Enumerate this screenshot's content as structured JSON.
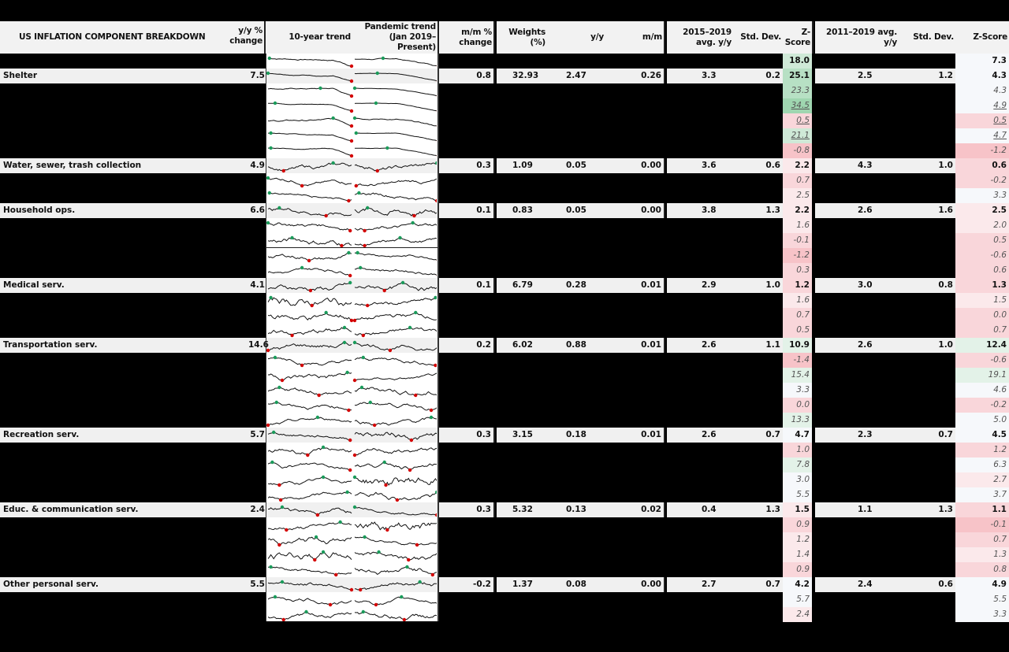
{
  "title": "US INFLATION COMPONENT BREAKDOWN",
  "headers": {
    "yy_change": "y/y % change",
    "yy_change_l1": "y/y %",
    "yy_change_l2": "change",
    "trend10": "10-year trend",
    "pandemic_l1": "Pandemic trend",
    "pandemic_l2": "(Jan 2019–Present)",
    "mm_l1": "m/m %",
    "mm_l2": "change",
    "weights_l1": "Weights",
    "weights_l2": "(%)",
    "contrib_yy": "y/y",
    "contrib_mm": "m/m",
    "avg2015_l1": "2015–2019",
    "avg2015_l2": "avg. y/y",
    "std1": "Std. Dev.",
    "z1": "Z-Score",
    "avg2011_l1": "2011–2019 avg.",
    "avg2011_l2": "y/y",
    "std2": "Std. Dev.",
    "z2": "Z-Score"
  },
  "colors": {
    "green_strong": "#9fd6b0",
    "green_mid": "#b7e0c4",
    "green_light": "#cfe9d7",
    "green_faint": "#e3f2e8",
    "neutral": "#f6f8fb",
    "pink_faint": "#fbe9eb",
    "pink_light": "#f9d6da",
    "pink_mid": "#f7c3c8",
    "spark_low": "#d40000",
    "spark_high": "#1a9b5a"
  },
  "rows": [
    {
      "type": "sub",
      "z1": "18.0",
      "z1c": "green_light",
      "z2": "7.3",
      "z2c": "neutral",
      "z_bold": true
    },
    {
      "type": "main",
      "label": "Shelter",
      "yy": "7.5",
      "mm": "0.8",
      "weight": "32.93",
      "cyy": "2.47",
      "cmm": "0.26",
      "avg1": "3.3",
      "std1": "0.2",
      "z1": "25.1",
      "z1c": "green_mid",
      "avg2": "2.5",
      "std2": "1.2",
      "z2": "4.3",
      "z2c": "neutral"
    },
    {
      "type": "sub",
      "z1": "23.3",
      "z1c": "green_mid",
      "z2": "4.3",
      "z2c": "neutral"
    },
    {
      "type": "sub",
      "z1": "34.5",
      "z1c": "green_strong",
      "z2": "4.9",
      "z2c": "neutral",
      "u": true
    },
    {
      "type": "sub",
      "z1": "0.5",
      "z1c": "pink_light",
      "z2": "0.5",
      "z2c": "pink_light",
      "u": true
    },
    {
      "type": "sub",
      "z1": "21.1",
      "z1c": "green_light",
      "z2": "4.7",
      "z2c": "neutral",
      "u": true
    },
    {
      "type": "sub",
      "z1": "-0.8",
      "z1c": "pink_mid",
      "z2": "-1.2",
      "z2c": "pink_mid"
    },
    {
      "type": "main",
      "label": "Water, sewer, trash collection",
      "yy": "4.9",
      "mm": "0.3",
      "weight": "1.09",
      "cyy": "0.05",
      "cmm": "0.00",
      "avg1": "3.6",
      "std1": "0.6",
      "z1": "2.2",
      "z1c": "pink_faint",
      "avg2": "4.3",
      "std2": "1.0",
      "z2": "0.6",
      "z2c": "pink_light"
    },
    {
      "type": "sub",
      "z1": "0.7",
      "z1c": "pink_light",
      "z2": "-0.2",
      "z2c": "pink_light"
    },
    {
      "type": "sub",
      "z1": "2.5",
      "z1c": "pink_faint",
      "z2": "3.3",
      "z2c": "neutral"
    },
    {
      "type": "main",
      "label": "Household ops.",
      "yy": "6.6",
      "mm": "0.1",
      "weight": "0.83",
      "cyy": "0.05",
      "cmm": "0.00",
      "avg1": "3.8",
      "std1": "1.3",
      "z1": "2.2",
      "z1c": "pink_faint",
      "avg2": "2.6",
      "std2": "1.6",
      "z2": "2.5",
      "z2c": "pink_faint"
    },
    {
      "type": "sub",
      "z1": "1.6",
      "z1c": "pink_faint",
      "z2": "2.0",
      "z2c": "pink_faint"
    },
    {
      "type": "sub",
      "z1": "-0.1",
      "z1c": "pink_light",
      "z2": "0.5",
      "z2c": "pink_light"
    },
    {
      "type": "sub",
      "z1": "-1.2",
      "z1c": "pink_mid",
      "z2": "-0.6",
      "z2c": "pink_light"
    },
    {
      "type": "sub",
      "z1": "0.3",
      "z1c": "pink_light",
      "z2": "0.6",
      "z2c": "pink_light"
    },
    {
      "type": "main",
      "label": "Medical serv.",
      "yy": "4.1",
      "mm": "0.1",
      "weight": "6.79",
      "cyy": "0.28",
      "cmm": "0.01",
      "avg1": "2.9",
      "std1": "1.0",
      "z1": "1.2",
      "z1c": "pink_light",
      "avg2": "3.0",
      "std2": "0.8",
      "z2": "1.3",
      "z2c": "pink_light"
    },
    {
      "type": "sub",
      "z1": "1.6",
      "z1c": "pink_faint",
      "z2": "1.5",
      "z2c": "pink_faint"
    },
    {
      "type": "sub",
      "z1": "0.7",
      "z1c": "pink_light",
      "z2": "0.0",
      "z2c": "pink_light"
    },
    {
      "type": "sub",
      "z1": "0.5",
      "z1c": "pink_light",
      "z2": "0.7",
      "z2c": "pink_light"
    },
    {
      "type": "main",
      "label": "Transportation serv.",
      "yy": "14.6",
      "mm": "0.2",
      "weight": "6.02",
      "cyy": "0.88",
      "cmm": "0.01",
      "avg1": "2.6",
      "std1": "1.1",
      "z1": "10.9",
      "z1c": "green_faint",
      "avg2": "2.6",
      "std2": "1.0",
      "z2": "12.4",
      "z2c": "green_faint"
    },
    {
      "type": "sub",
      "z1": "-1.4",
      "z1c": "pink_mid",
      "z2": "-0.6",
      "z2c": "pink_light"
    },
    {
      "type": "sub",
      "z1": "15.4",
      "z1c": "green_faint",
      "z2": "19.1",
      "z2c": "green_faint"
    },
    {
      "type": "sub",
      "z1": "3.3",
      "z1c": "neutral",
      "z2": "4.6",
      "z2c": "neutral"
    },
    {
      "type": "sub",
      "z1": "0.0",
      "z1c": "pink_light",
      "z2": "-0.2",
      "z2c": "pink_light"
    },
    {
      "type": "sub",
      "z1": "13.3",
      "z1c": "green_faint",
      "z2": "5.0",
      "z2c": "neutral"
    },
    {
      "type": "main",
      "label": "Recreation serv.",
      "yy": "5.7",
      "mm": "0.3",
      "weight": "3.15",
      "cyy": "0.18",
      "cmm": "0.01",
      "avg1": "2.6",
      "std1": "0.7",
      "z1": "4.7",
      "z1c": "neutral",
      "avg2": "2.3",
      "std2": "0.7",
      "z2": "4.5",
      "z2c": "neutral"
    },
    {
      "type": "sub",
      "z1": "1.0",
      "z1c": "pink_light",
      "z2": "1.2",
      "z2c": "pink_light"
    },
    {
      "type": "sub",
      "z1": "7.8",
      "z1c": "green_faint",
      "z2": "6.3",
      "z2c": "neutral"
    },
    {
      "type": "sub",
      "z1": "3.0",
      "z1c": "neutral",
      "z2": "2.7",
      "z2c": "pink_faint"
    },
    {
      "type": "sub",
      "z1": "5.5",
      "z1c": "neutral",
      "z2": "3.7",
      "z2c": "neutral"
    },
    {
      "type": "main",
      "label": "Educ. & communication serv.",
      "yy": "2.4",
      "mm": "0.3",
      "weight": "5.32",
      "cyy": "0.13",
      "cmm": "0.02",
      "avg1": "0.4",
      "std1": "1.3",
      "z1": "1.5",
      "z1c": "pink_faint",
      "avg2": "1.1",
      "std2": "1.3",
      "z2": "1.1",
      "z2c": "pink_light"
    },
    {
      "type": "sub",
      "z1": "0.9",
      "z1c": "pink_light",
      "z2": "-0.1",
      "z2c": "pink_mid"
    },
    {
      "type": "sub",
      "z1": "1.2",
      "z1c": "pink_faint",
      "z2": "0.7",
      "z2c": "pink_light"
    },
    {
      "type": "sub",
      "z1": "1.4",
      "z1c": "pink_faint",
      "z2": "1.3",
      "z2c": "pink_faint"
    },
    {
      "type": "sub",
      "z1": "0.9",
      "z1c": "pink_light",
      "z2": "0.8",
      "z2c": "pink_light"
    },
    {
      "type": "main",
      "label": "Other personal serv.",
      "yy": "5.5",
      "mm": "-0.2",
      "weight": "1.37",
      "cyy": "0.08",
      "cmm": "0.00",
      "avg1": "2.7",
      "std1": "0.7",
      "z1": "4.2",
      "z1c": "neutral",
      "avg2": "2.4",
      "std2": "0.6",
      "z2": "4.9",
      "z2c": "neutral"
    },
    {
      "type": "sub",
      "z1": "5.7",
      "z1c": "neutral",
      "z2": "5.5",
      "z2c": "neutral"
    },
    {
      "type": "sub",
      "z1": "2.4",
      "z1c": "pink_faint",
      "z2": "3.3",
      "z2c": "neutral"
    }
  ]
}
